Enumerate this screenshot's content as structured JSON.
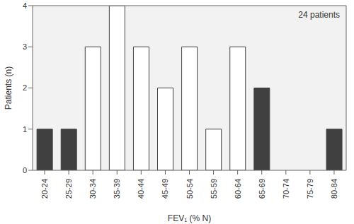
{
  "chart_data": {
    "type": "bar",
    "annotation": "24 patients",
    "x_label": "FEV₁ (% N)",
    "y_label": "Patients (n)",
    "categories": [
      "20-24",
      "25-29",
      "30-34",
      "35-39",
      "40-44",
      "45-49",
      "50-54",
      "55-59",
      "60-64",
      "65-69",
      "70-74",
      "75-79",
      "80-84"
    ],
    "values": [
      1,
      1,
      3,
      4,
      3,
      2,
      3,
      1,
      3,
      2,
      0,
      0,
      1
    ],
    "colors": [
      "#404040",
      "#404040",
      "#ffffff",
      "#ffffff",
      "#ffffff",
      "#ffffff",
      "#ffffff",
      "#ffffff",
      "#ffffff",
      "#404040",
      "#404040",
      "#404040",
      "#404040"
    ],
    "ylim": [
      0,
      4
    ],
    "yticks": [
      0,
      1,
      2,
      3,
      4
    ],
    "grid": false
  }
}
